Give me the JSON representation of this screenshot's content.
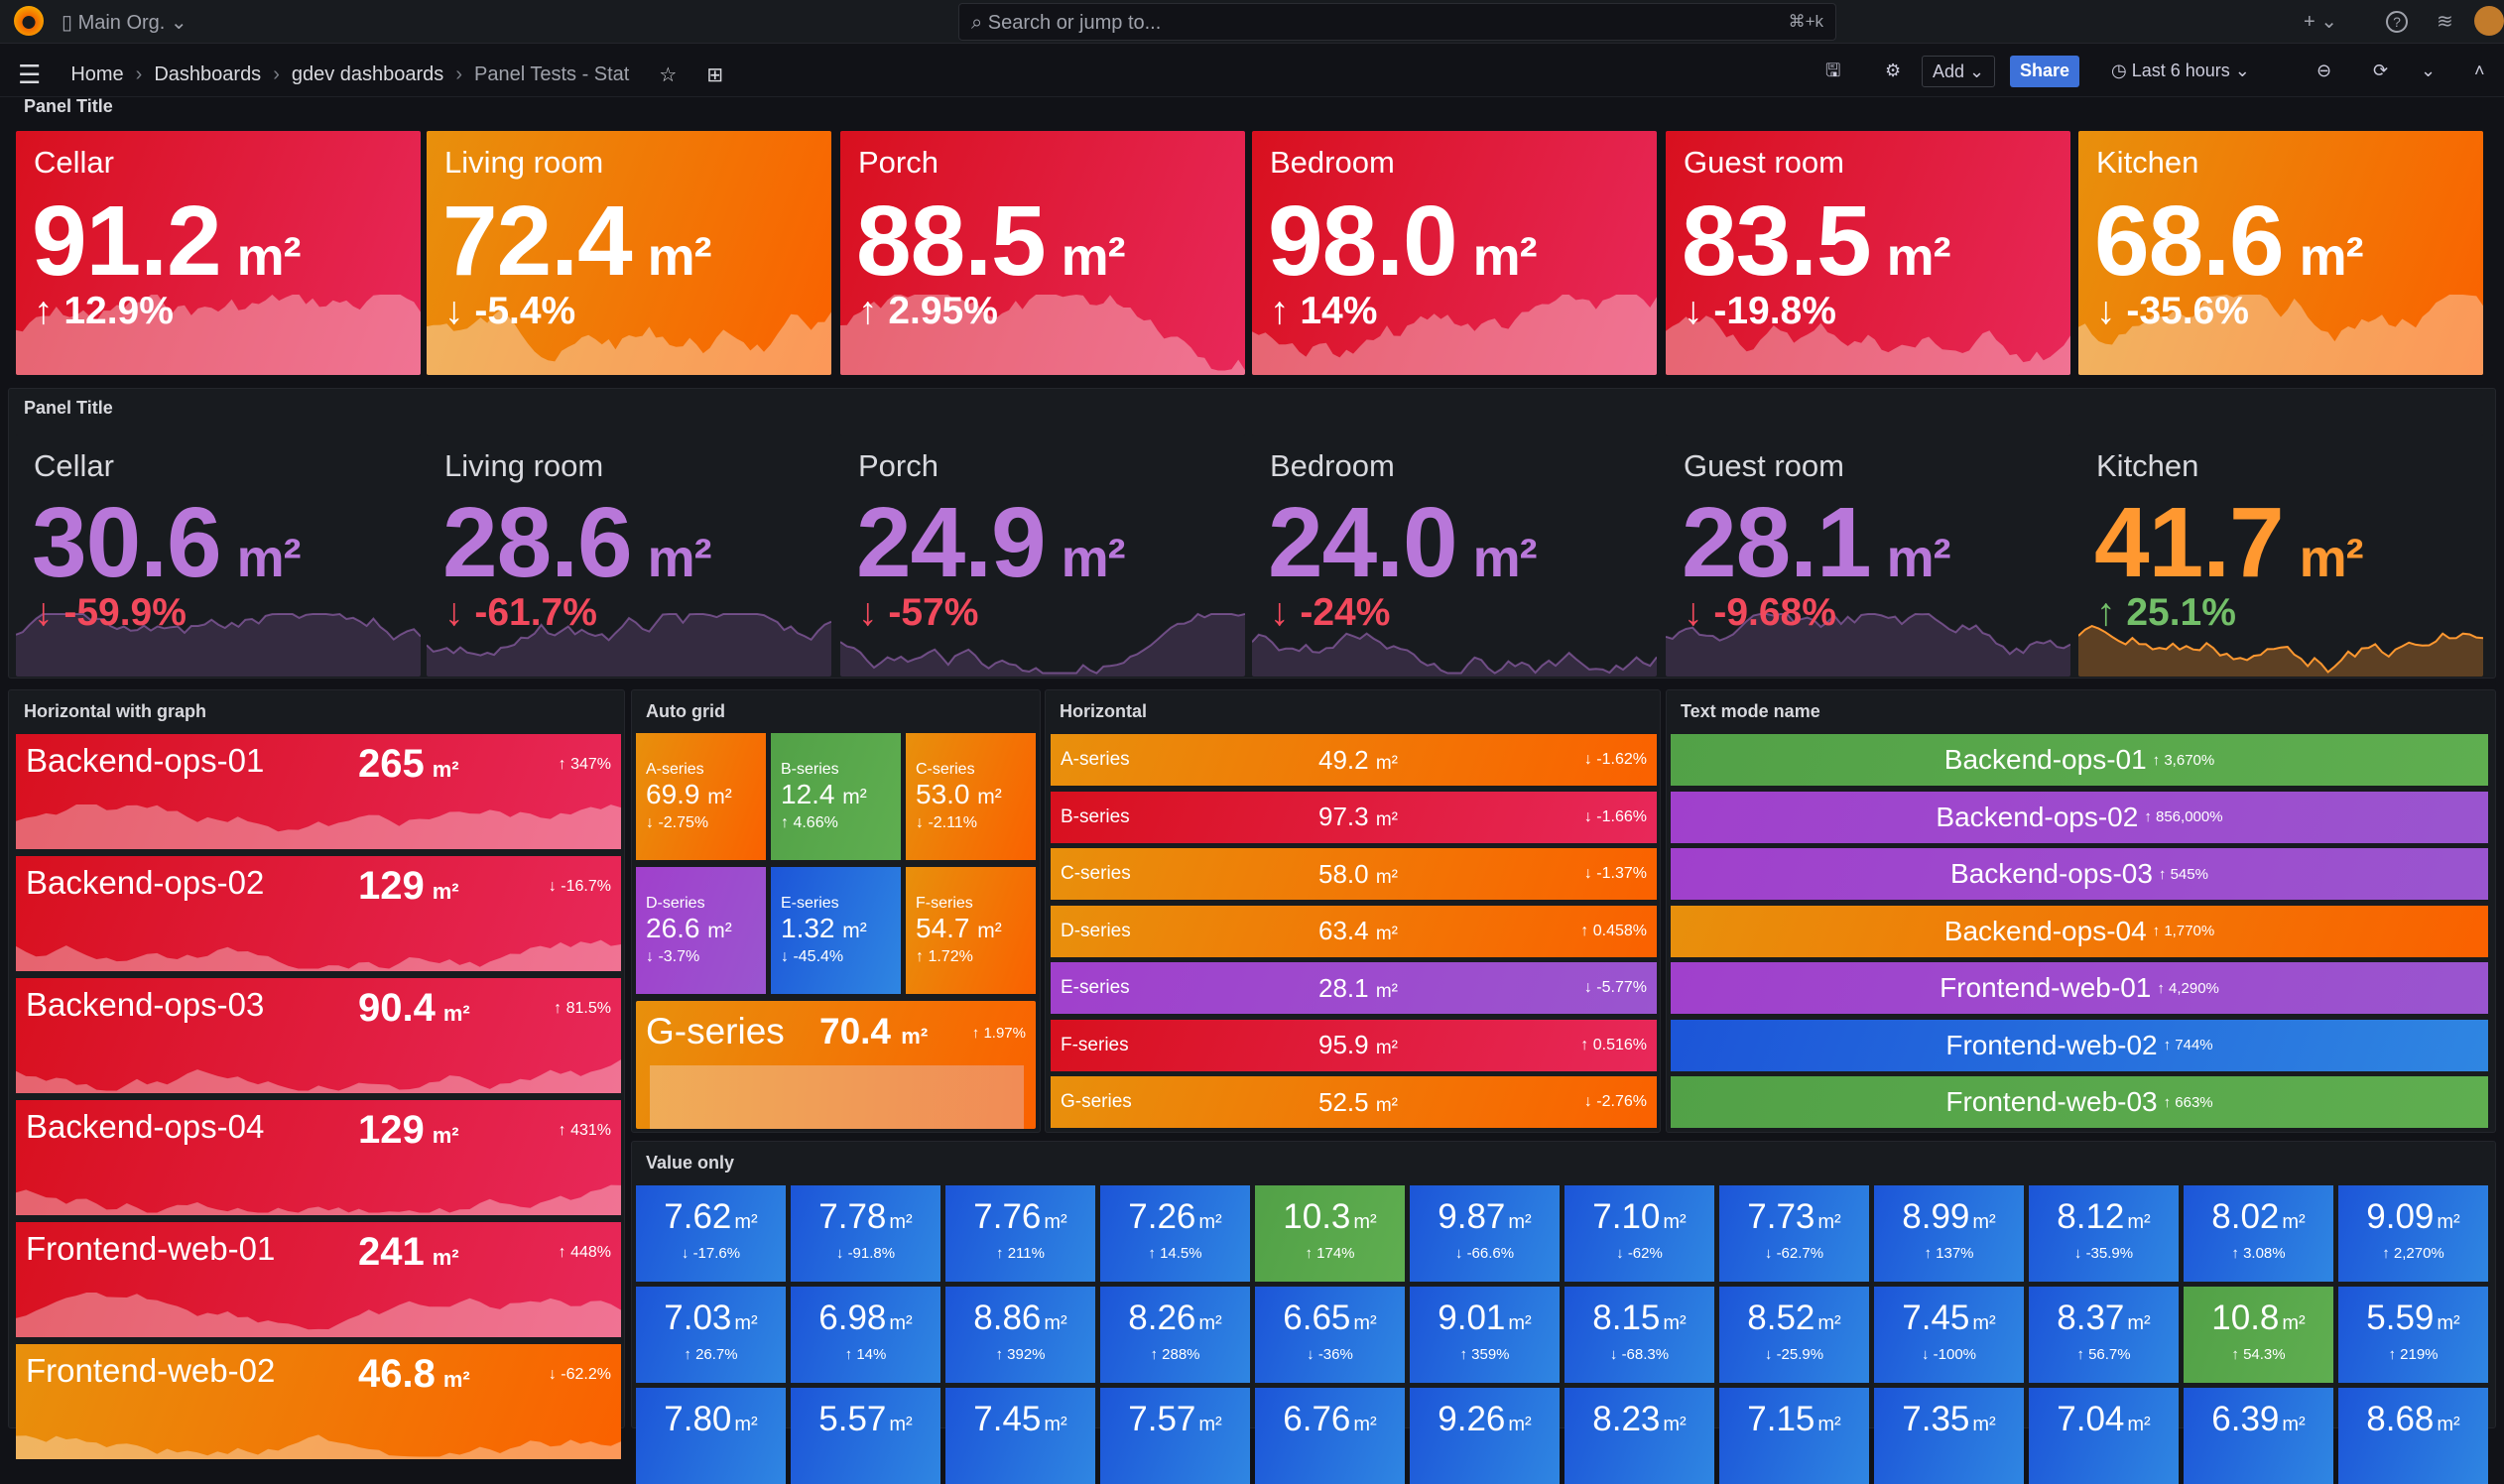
{
  "topbar": {
    "org": "Main Org.",
    "search_placeholder": "Search or jump to...",
    "shortcut": "⌘+k",
    "plus": "+ ⌄",
    "help": "?",
    "rss": "≋"
  },
  "breadcrumb": [
    "Home",
    "Dashboards",
    "gdev dashboards",
    "Panel Tests - Stat"
  ],
  "toolbar": {
    "add": "Add ⌄",
    "share": "Share",
    "time_range": "Last 6 hours",
    "accent": "#3d71d9"
  },
  "row1": {
    "title": "Panel Title",
    "items": [
      {
        "name": "Cellar",
        "value": "91.2",
        "unit": "m²",
        "change": "12.9%",
        "dir": "up",
        "color": "red"
      },
      {
        "name": "Living room",
        "value": "72.4",
        "unit": "m²",
        "change": "-5.4%",
        "dir": "down",
        "color": "orange"
      },
      {
        "name": "Porch",
        "value": "88.5",
        "unit": "m²",
        "change": "2.95%",
        "dir": "up",
        "color": "red"
      },
      {
        "name": "Bedroom",
        "value": "98.0",
        "unit": "m²",
        "change": "14%",
        "dir": "up",
        "color": "red"
      },
      {
        "name": "Guest room",
        "value": "83.5",
        "unit": "m²",
        "change": "-19.8%",
        "dir": "down",
        "color": "red"
      },
      {
        "name": "Kitchen",
        "value": "68.6",
        "unit": "m²",
        "change": "-35.6%",
        "dir": "down",
        "color": "orange"
      }
    ]
  },
  "row2": {
    "title": "Panel Title",
    "items": [
      {
        "name": "Cellar",
        "value": "30.6",
        "unit": "m²",
        "change": "-59.9%",
        "dir": "down",
        "color": "#b877d9",
        "change_color": "#f2495c"
      },
      {
        "name": "Living room",
        "value": "28.6",
        "unit": "m²",
        "change": "-61.7%",
        "dir": "down",
        "color": "#b877d9",
        "change_color": "#f2495c"
      },
      {
        "name": "Porch",
        "value": "24.9",
        "unit": "m²",
        "change": "-57%",
        "dir": "down",
        "color": "#b877d9",
        "change_color": "#f2495c"
      },
      {
        "name": "Bedroom",
        "value": "24.0",
        "unit": "m²",
        "change": "-24%",
        "dir": "down",
        "color": "#b877d9",
        "change_color": "#f2495c"
      },
      {
        "name": "Guest room",
        "value": "28.1",
        "unit": "m²",
        "change": "-9.68%",
        "dir": "down",
        "color": "#b877d9",
        "change_color": "#f2495c"
      },
      {
        "name": "Kitchen",
        "value": "41.7",
        "unit": "m²",
        "change": "25.1%",
        "dir": "up",
        "color": "#ff9830",
        "change_color": "#73bf69"
      }
    ]
  },
  "hgraph": {
    "title": "Horizontal with graph",
    "items": [
      {
        "name": "Backend-ops-01",
        "value": "265",
        "unit": "m²",
        "change": "347%",
        "dir": "up",
        "color": "red"
      },
      {
        "name": "Backend-ops-02",
        "value": "129",
        "unit": "m²",
        "change": "-16.7%",
        "dir": "down",
        "color": "red"
      },
      {
        "name": "Backend-ops-03",
        "value": "90.4",
        "unit": "m²",
        "change": "81.5%",
        "dir": "up",
        "color": "red"
      },
      {
        "name": "Backend-ops-04",
        "value": "129",
        "unit": "m²",
        "change": "431%",
        "dir": "up",
        "color": "red"
      },
      {
        "name": "Frontend-web-01",
        "value": "241",
        "unit": "m²",
        "change": "448%",
        "dir": "up",
        "color": "red"
      },
      {
        "name": "Frontend-web-02",
        "value": "46.8",
        "unit": "m²",
        "change": "-62.2%",
        "dir": "down",
        "color": "orange"
      }
    ]
  },
  "autogrid": {
    "title": "Auto grid",
    "items": [
      {
        "name": "A-series",
        "value": "69.9",
        "unit": "m²",
        "change": "-2.75%",
        "dir": "down",
        "color": "orange"
      },
      {
        "name": "B-series",
        "value": "12.4",
        "unit": "m²",
        "change": "4.66%",
        "dir": "up",
        "color": "green"
      },
      {
        "name": "C-series",
        "value": "53.0",
        "unit": "m²",
        "change": "-2.11%",
        "dir": "down",
        "color": "orange"
      },
      {
        "name": "D-series",
        "value": "26.6",
        "unit": "m²",
        "change": "-3.7%",
        "dir": "down",
        "color": "purple"
      },
      {
        "name": "E-series",
        "value": "1.32",
        "unit": "m²",
        "change": "-45.4%",
        "dir": "down",
        "color": "blue"
      },
      {
        "name": "F-series",
        "value": "54.7",
        "unit": "m²",
        "change": "1.72%",
        "dir": "up",
        "color": "orange"
      }
    ],
    "wide": {
      "name": "G-series",
      "value": "70.4",
      "unit": "m²",
      "change": "1.97%",
      "dir": "up",
      "color": "orange"
    }
  },
  "horizontal": {
    "title": "Horizontal",
    "items": [
      {
        "name": "A-series",
        "value": "49.2",
        "unit": "m²",
        "change": "-1.62%",
        "dir": "down",
        "color": "orange"
      },
      {
        "name": "B-series",
        "value": "97.3",
        "unit": "m²",
        "change": "-1.66%",
        "dir": "down",
        "color": "red"
      },
      {
        "name": "C-series",
        "value": "58.0",
        "unit": "m²",
        "change": "-1.37%",
        "dir": "down",
        "color": "orange"
      },
      {
        "name": "D-series",
        "value": "63.4",
        "unit": "m²",
        "change": "0.458%",
        "dir": "up",
        "color": "orange"
      },
      {
        "name": "E-series",
        "value": "28.1",
        "unit": "m²",
        "change": "-5.77%",
        "dir": "down",
        "color": "purple"
      },
      {
        "name": "F-series",
        "value": "95.9",
        "unit": "m²",
        "change": "0.516%",
        "dir": "up",
        "color": "red"
      },
      {
        "name": "G-series",
        "value": "52.5",
        "unit": "m²",
        "change": "-2.76%",
        "dir": "down",
        "color": "orange"
      }
    ]
  },
  "textmode": {
    "title": "Text mode name",
    "items": [
      {
        "name": "Backend-ops-01",
        "change": "3,670%",
        "dir": "up",
        "color": "green"
      },
      {
        "name": "Backend-ops-02",
        "change": "856,000%",
        "dir": "up",
        "color": "purple"
      },
      {
        "name": "Backend-ops-03",
        "change": "545%",
        "dir": "up",
        "color": "purple"
      },
      {
        "name": "Backend-ops-04",
        "change": "1,770%",
        "dir": "up",
        "color": "orange"
      },
      {
        "name": "Frontend-web-01",
        "change": "4,290%",
        "dir": "up",
        "color": "purple"
      },
      {
        "name": "Frontend-web-02",
        "change": "744%",
        "dir": "up",
        "color": "blue"
      },
      {
        "name": "Frontend-web-03",
        "change": "663%",
        "dir": "up",
        "color": "green"
      }
    ]
  },
  "valueonly": {
    "title": "Value only",
    "unit": "m²",
    "items": [
      {
        "value": "7.62",
        "change": "-17.6%",
        "dir": "down",
        "color": "blue"
      },
      {
        "value": "7.78",
        "change": "-91.8%",
        "dir": "down",
        "color": "blue"
      },
      {
        "value": "7.76",
        "change": "211%",
        "dir": "up",
        "color": "blue"
      },
      {
        "value": "7.26",
        "change": "14.5%",
        "dir": "up",
        "color": "blue"
      },
      {
        "value": "10.3",
        "change": "174%",
        "dir": "up",
        "color": "green"
      },
      {
        "value": "9.87",
        "change": "-66.6%",
        "dir": "down",
        "color": "blue"
      },
      {
        "value": "7.10",
        "change": "-62%",
        "dir": "down",
        "color": "blue"
      },
      {
        "value": "7.73",
        "change": "-62.7%",
        "dir": "down",
        "color": "blue"
      },
      {
        "value": "8.99",
        "change": "137%",
        "dir": "up",
        "color": "blue"
      },
      {
        "value": "8.12",
        "change": "-35.9%",
        "dir": "down",
        "color": "blue"
      },
      {
        "value": "8.02",
        "change": "3.08%",
        "dir": "up",
        "color": "blue"
      },
      {
        "value": "9.09",
        "change": "2,270%",
        "dir": "up",
        "color": "blue"
      },
      {
        "value": "7.03",
        "change": "26.7%",
        "dir": "up",
        "color": "blue"
      },
      {
        "value": "6.98",
        "change": "14%",
        "dir": "up",
        "color": "blue"
      },
      {
        "value": "8.86",
        "change": "392%",
        "dir": "up",
        "color": "blue"
      },
      {
        "value": "8.26",
        "change": "288%",
        "dir": "up",
        "color": "blue"
      },
      {
        "value": "6.65",
        "change": "-36%",
        "dir": "down",
        "color": "blue"
      },
      {
        "value": "9.01",
        "change": "359%",
        "dir": "up",
        "color": "blue"
      },
      {
        "value": "8.15",
        "change": "-68.3%",
        "dir": "down",
        "color": "blue"
      },
      {
        "value": "8.52",
        "change": "-25.9%",
        "dir": "down",
        "color": "blue"
      },
      {
        "value": "7.45",
        "change": "-100%",
        "dir": "down",
        "color": "blue"
      },
      {
        "value": "8.37",
        "change": "56.7%",
        "dir": "up",
        "color": "blue"
      },
      {
        "value": "10.8",
        "change": "54.3%",
        "dir": "up",
        "color": "green"
      },
      {
        "value": "5.59",
        "change": "219%",
        "dir": "up",
        "color": "blue"
      },
      {
        "value": "7.80",
        "color": "blue"
      },
      {
        "value": "5.57",
        "color": "blue"
      },
      {
        "value": "7.45",
        "color": "blue"
      },
      {
        "value": "7.57",
        "color": "blue"
      },
      {
        "value": "6.76",
        "color": "blue"
      },
      {
        "value": "9.26",
        "color": "blue"
      },
      {
        "value": "8.23",
        "color": "blue"
      },
      {
        "value": "7.15",
        "color": "blue"
      },
      {
        "value": "7.35",
        "color": "blue"
      },
      {
        "value": "7.04",
        "color": "blue"
      },
      {
        "value": "6.39",
        "color": "blue"
      },
      {
        "value": "8.68",
        "color": "blue"
      }
    ]
  }
}
